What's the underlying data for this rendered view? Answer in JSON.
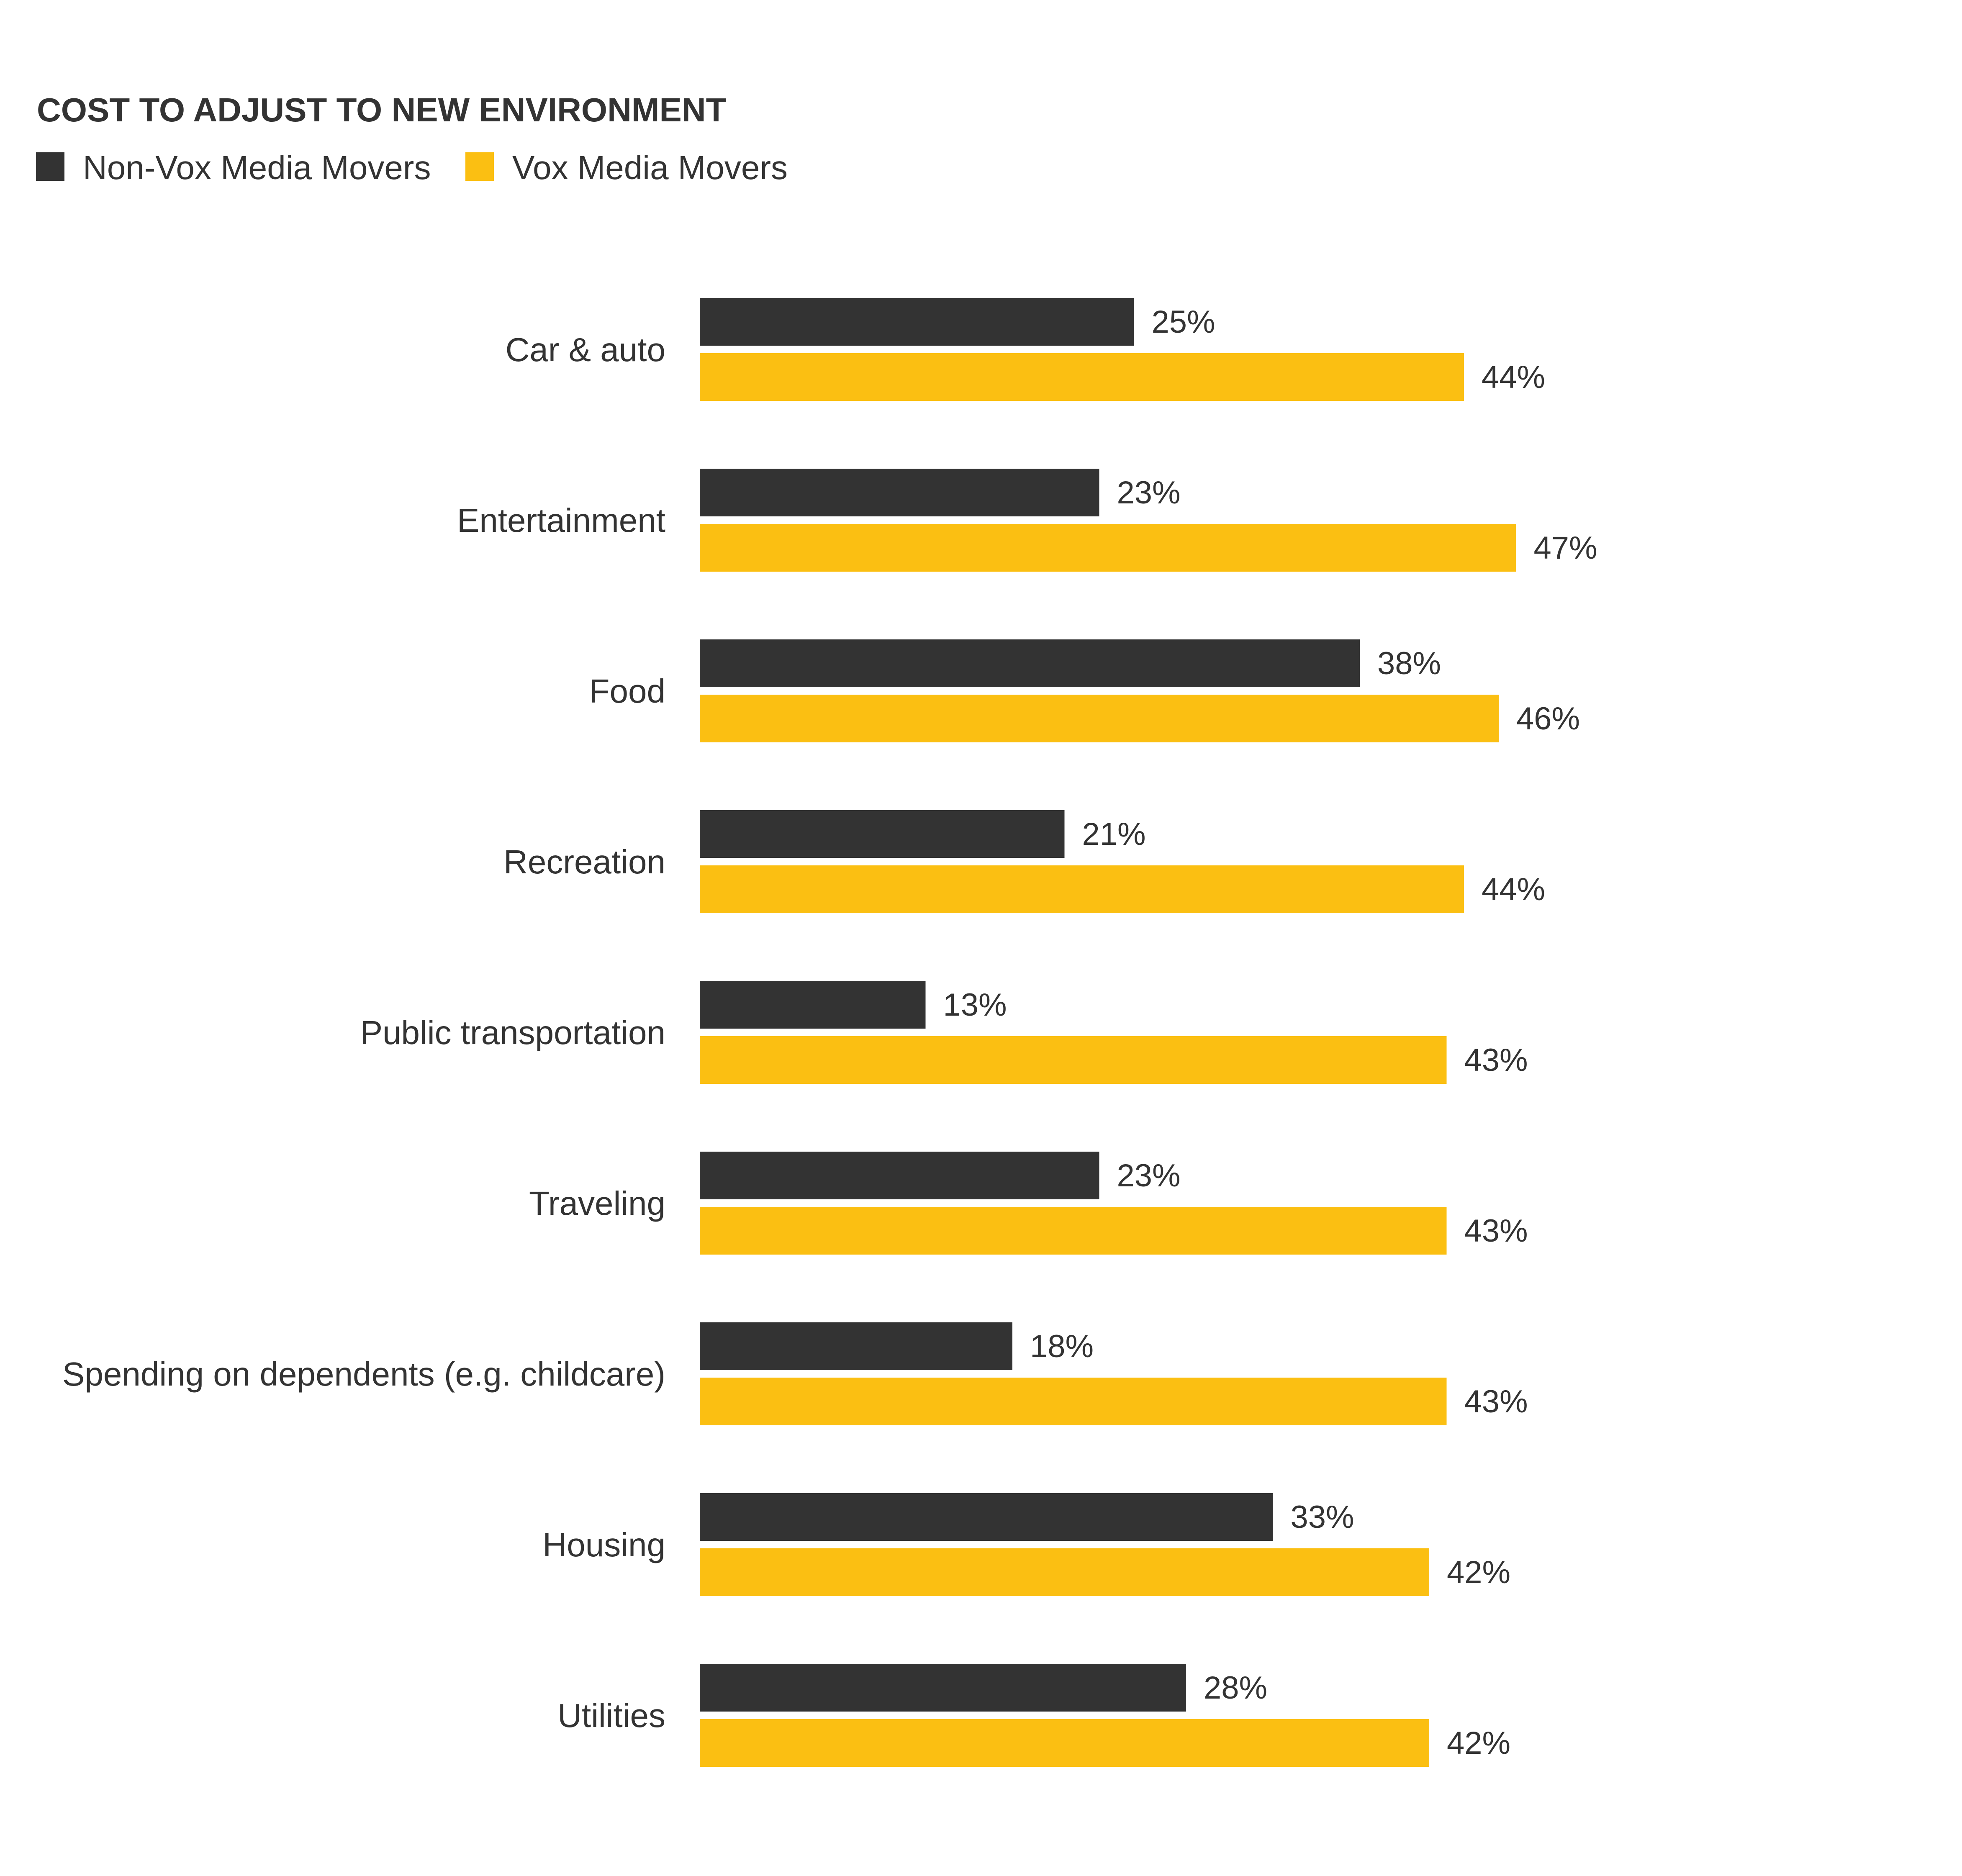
{
  "chart_data": {
    "type": "bar",
    "orientation": "horizontal",
    "title": "COST TO ADJUST TO NEW ENVIRONMENT",
    "categories": [
      "Car & auto",
      "Entertainment",
      "Food",
      "Recreation",
      "Public transportation",
      "Traveling",
      "Spending on dependents (e.g. childcare)",
      "Housing",
      "Utilities"
    ],
    "series": [
      {
        "name": "Non-Vox Media Movers",
        "color": "#333333",
        "values": [
          25,
          23,
          38,
          21,
          13,
          23,
          18,
          33,
          28
        ],
        "labels": [
          "25%",
          "23%",
          "38%",
          "21%",
          "13%",
          "23%",
          "18%",
          "33%",
          "28%"
        ]
      },
      {
        "name": "Vox Media Movers",
        "color": "#FBBF12",
        "values": [
          44,
          47,
          46,
          44,
          43,
          43,
          43,
          42,
          42
        ],
        "labels": [
          "44%",
          "47%",
          "46%",
          "44%",
          "43%",
          "43%",
          "43%",
          "42%",
          "42%"
        ]
      }
    ],
    "xlim": [
      0,
      50
    ],
    "xlabel": "",
    "ylabel": "",
    "grid": false,
    "legend": "top-left"
  }
}
